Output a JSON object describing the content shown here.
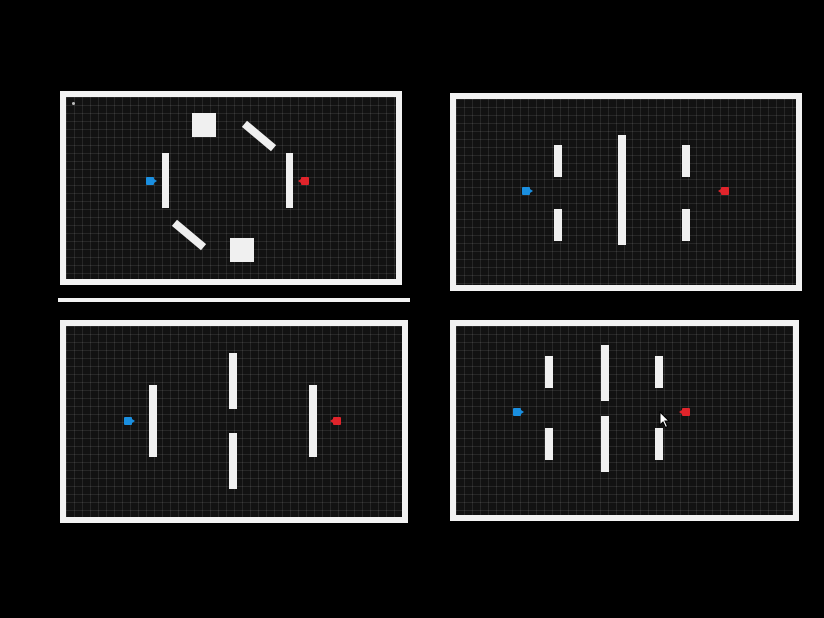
{
  "colors": {
    "background": "#000000",
    "arena_border": "#f2f2f2",
    "arena_floor": "#121212",
    "grid_line": "#2a2a2a",
    "wall": "#f0f0f0",
    "blue_tank": "#1a8fe0",
    "red_tank": "#e0242b"
  },
  "arenas": [
    {
      "id": "top-left",
      "layout": "ring-of-obstacles",
      "players": [
        "blue-tank",
        "red-tank"
      ]
    },
    {
      "id": "top-right",
      "layout": "split-columns",
      "players": [
        "blue-tank",
        "red-tank"
      ]
    },
    {
      "id": "bottom-left",
      "layout": "offset-barriers",
      "players": [
        "blue-tank",
        "red-tank"
      ]
    },
    {
      "id": "bottom-right",
      "layout": "pillar-grid",
      "players": [
        "blue-tank",
        "red-tank"
      ]
    }
  ],
  "icons": {
    "blue_tank": "blue-tank-icon",
    "red_tank": "red-tank-icon",
    "pointer": "mouse-pointer-icon"
  }
}
